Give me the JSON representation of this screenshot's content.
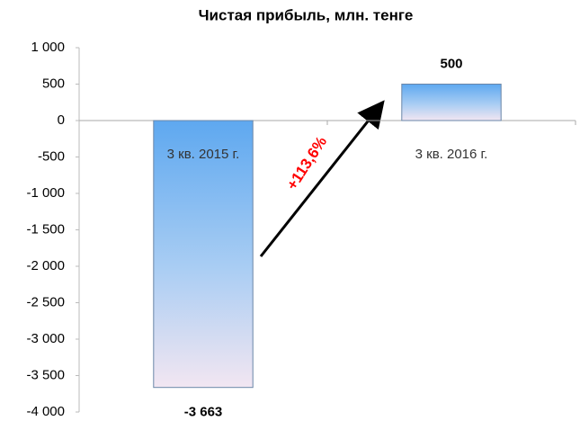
{
  "chart_data": {
    "type": "bar",
    "title": "Чистая прибыль, млн. тенге",
    "categories": [
      "3 кв. 2015 г.",
      "3 кв. 2016 г."
    ],
    "values": [
      -3663,
      500
    ],
    "value_labels": [
      "-3 663",
      "500"
    ],
    "ylim": [
      -4000,
      1000
    ],
    "yticks": [
      {
        "value": -4000,
        "label": "-4 000"
      },
      {
        "value": -3500,
        "label": "-3 500"
      },
      {
        "value": -3000,
        "label": "-3 000"
      },
      {
        "value": -2500,
        "label": "-2 500"
      },
      {
        "value": -2000,
        "label": "-2 000"
      },
      {
        "value": -1500,
        "label": "-1 500"
      },
      {
        "value": -1000,
        "label": "-1 000"
      },
      -500,
      0,
      500,
      {
        "value": 1000,
        "label": "1 000"
      }
    ],
    "annotation": "+113,6%",
    "annotation_color": "#ff0000",
    "grid": false
  }
}
